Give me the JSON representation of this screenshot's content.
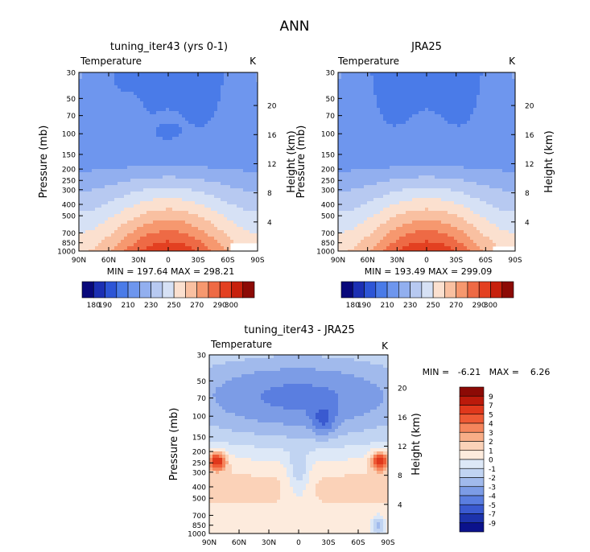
{
  "figure_title": "ANN",
  "chart_data": [
    {
      "type": "heatmap",
      "title": "tuning_iter43 (yrs 0-1)",
      "variable": "Temperature",
      "units": "K",
      "ylabel": "Pressure (mb)",
      "ylabel_right": "Height (km)",
      "x_ticks": [
        "90N",
        "60N",
        "30N",
        "0",
        "30S",
        "60S",
        "90S"
      ],
      "x_range": [
        90,
        -90
      ],
      "y_range": [
        1000,
        30
      ],
      "y_ticks": [
        30,
        50,
        70,
        100,
        150,
        200,
        250,
        300,
        400,
        500,
        700,
        850,
        1000
      ],
      "height_ticks_km": [
        4,
        8,
        12,
        16,
        20
      ],
      "min": "197.64",
      "max": "298.21",
      "stats_text": "MIN = 197.64   MAX = 298.21",
      "colorbar_levels": [
        "180",
        "190",
        "200",
        "210",
        "220",
        "230",
        "240",
        "250",
        "260",
        "270",
        "280",
        "290",
        "300"
      ],
      "colorbar_labels": [
        "180",
        "190",
        "210",
        "230",
        "250",
        "270",
        "290",
        "300"
      ]
    },
    {
      "type": "heatmap",
      "title": "JRA25",
      "variable": "Temperature",
      "units": "K",
      "ylabel": "Pressure (mb)",
      "ylabel_right": "Height (km)",
      "x_ticks": [
        "90N",
        "60N",
        "30N",
        "0",
        "30S",
        "60S",
        "90S"
      ],
      "x_range": [
        90,
        -90
      ],
      "y_range": [
        1000,
        30
      ],
      "y_ticks": [
        30,
        50,
        70,
        100,
        150,
        200,
        250,
        300,
        400,
        500,
        700,
        850,
        1000
      ],
      "height_ticks_km": [
        4,
        8,
        12,
        16,
        20
      ],
      "min": "193.49",
      "max": "299.09",
      "stats_text": "MIN = 193.49   MAX = 299.09",
      "colorbar_levels": [
        "180",
        "190",
        "200",
        "210",
        "220",
        "230",
        "240",
        "250",
        "260",
        "270",
        "280",
        "290",
        "300"
      ],
      "colorbar_labels": [
        "180",
        "190",
        "210",
        "230",
        "250",
        "270",
        "290",
        "300"
      ]
    },
    {
      "type": "heatmap",
      "title": "tuning_iter43 - JRA25",
      "variable": "Temperature",
      "units": "K",
      "ylabel": "Pressure (mb)",
      "ylabel_right": "Height (km)",
      "x_ticks": [
        "90N",
        "60N",
        "30N",
        "0",
        "30S",
        "60S",
        "90S"
      ],
      "x_range": [
        90,
        -90
      ],
      "y_range": [
        1000,
        30
      ],
      "y_ticks": [
        30,
        50,
        70,
        100,
        150,
        200,
        250,
        300,
        400,
        500,
        700,
        850,
        1000
      ],
      "height_ticks_km": [
        4,
        8,
        12,
        16,
        20
      ],
      "min": "-6.21",
      "max": "6.26",
      "stats_text": "MIN =   -6.21   MAX =    6.26",
      "colorbar_labels": [
        "9",
        "7",
        "5",
        "4",
        "3",
        "2",
        "1",
        "0",
        "-1",
        "-2",
        "-3",
        "-4",
        "-5",
        "-7",
        "-9"
      ]
    }
  ],
  "colors": {
    "abs_scale": [
      "#08087a",
      "#1b2fb3",
      "#2d55d6",
      "#4a7be8",
      "#6e96ee",
      "#92afef",
      "#b7c9f1",
      "#d6e1f5",
      "#fbe0cf",
      "#f9c0a1",
      "#f6986f",
      "#ee6a45",
      "#e34021",
      "#c7200c",
      "#8c0a05"
    ],
    "diff_scale": [
      "#8c0a05",
      "#bb1a0b",
      "#e0381c",
      "#ee5a35",
      "#f5855c",
      "#f8ad87",
      "#fbd2b8",
      "#fdebdd",
      "#dde8f7",
      "#c1d4f2",
      "#a1baec",
      "#7c9ce6",
      "#5a7ee0",
      "#3a5ad0",
      "#1d33ac",
      "#0b128c"
    ]
  }
}
